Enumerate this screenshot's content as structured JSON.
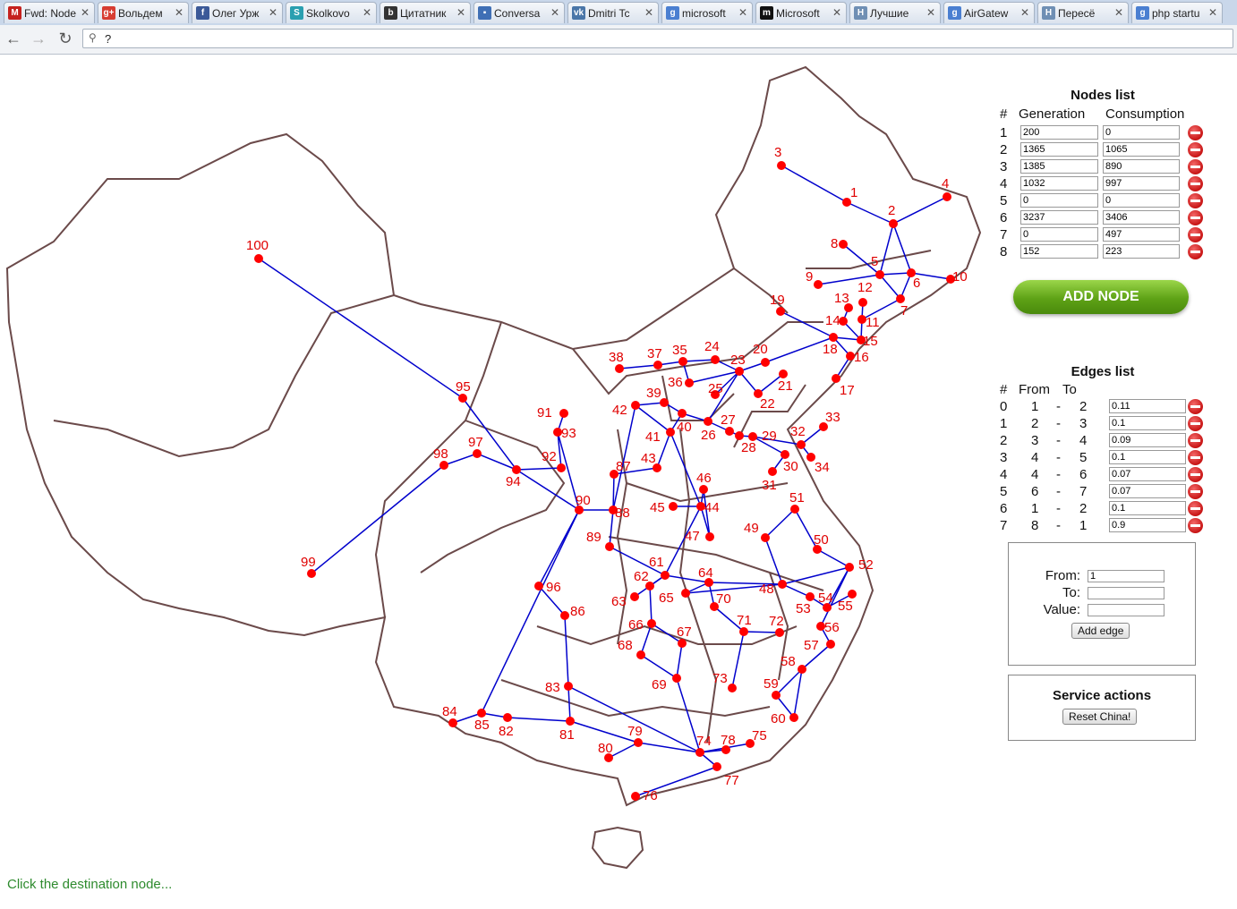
{
  "tabs": [
    {
      "title": "Fwd: Node",
      "icon": "gmail-icon",
      "color": "#c5221f",
      "glyph": "M"
    },
    {
      "title": "Вольдем",
      "icon": "gplus-icon",
      "color": "#d73d32",
      "glyph": "g+"
    },
    {
      "title": "Олег Урж",
      "icon": "facebook-icon",
      "color": "#3b5998",
      "glyph": "f"
    },
    {
      "title": "Skolkovo",
      "icon": "skolkovo-icon",
      "color": "#2a9fb0",
      "glyph": "S"
    },
    {
      "title": "Цитатник",
      "icon": "bash-icon",
      "color": "#333333",
      "glyph": "b"
    },
    {
      "title": "Conversa",
      "icon": "chat-icon",
      "color": "#3f6fb5",
      "glyph": "▪"
    },
    {
      "title": "Dmitri Tc",
      "icon": "vk-icon",
      "color": "#4a76a8",
      "glyph": "vk"
    },
    {
      "title": "microsoft",
      "icon": "google-icon",
      "color": "#4a7fd1",
      "glyph": "g"
    },
    {
      "title": "Microsoft",
      "icon": "medium-icon",
      "color": "#111111",
      "glyph": "m"
    },
    {
      "title": "Лучшие",
      "icon": "habr-icon",
      "color": "#6f8fb4",
      "glyph": "H"
    },
    {
      "title": "AirGatew",
      "icon": "google-icon",
      "color": "#4a7fd1",
      "glyph": "g"
    },
    {
      "title": "Пересё",
      "icon": "habr-icon",
      "color": "#6f8fb4",
      "glyph": "H"
    },
    {
      "title": "php startu",
      "icon": "google-icon",
      "color": "#4a7fd1",
      "glyph": "g"
    }
  ],
  "toolbar": {
    "omnibox_text": "?"
  },
  "nodes_panel": {
    "title": "Nodes list",
    "col_hash": "#",
    "col_gen": "Generation",
    "col_cons": "Consumption",
    "rows": [
      {
        "id": "1",
        "gen": "200",
        "cons": "0"
      },
      {
        "id": "2",
        "gen": "1365",
        "cons": "1065"
      },
      {
        "id": "3",
        "gen": "1385",
        "cons": "890"
      },
      {
        "id": "4",
        "gen": "1032",
        "cons": "997"
      },
      {
        "id": "5",
        "gen": "0",
        "cons": "0"
      },
      {
        "id": "6",
        "gen": "3237",
        "cons": "3406"
      },
      {
        "id": "7",
        "gen": "0",
        "cons": "497"
      },
      {
        "id": "8",
        "gen": "152",
        "cons": "223"
      }
    ],
    "add_button": "ADD NODE"
  },
  "edges_panel": {
    "title": "Edges list",
    "col_hash": "#",
    "col_from": "From",
    "col_to": "To",
    "rows": [
      {
        "id": "0",
        "from": "1",
        "to": "2",
        "val": "0.11"
      },
      {
        "id": "1",
        "from": "2",
        "to": "3",
        "val": "0.1"
      },
      {
        "id": "2",
        "from": "3",
        "to": "4",
        "val": "0.09"
      },
      {
        "id": "3",
        "from": "4",
        "to": "5",
        "val": "0.1"
      },
      {
        "id": "4",
        "from": "4",
        "to": "6",
        "val": "0.07"
      },
      {
        "id": "5",
        "from": "6",
        "to": "7",
        "val": "0.07"
      },
      {
        "id": "6",
        "from": "1",
        "to": "2",
        "val": "0.1"
      },
      {
        "id": "7",
        "from": "8",
        "to": "1",
        "val": "0.9"
      }
    ],
    "dash": "-"
  },
  "edge_form": {
    "from_label": "From:",
    "to_label": "To:",
    "value_label": "Value:",
    "from_value": "1",
    "to_value": "",
    "value_value": "",
    "button": "Add edge"
  },
  "service": {
    "title": "Service actions",
    "button": "Reset China!"
  },
  "status": "Click the destination node...",
  "map": {
    "node_color": "#ff0000",
    "label_color": "#e00000",
    "edge_color": "#0000cc",
    "nodes": [
      {
        "id": 1
      },
      {
        "id": 2
      },
      {
        "id": 3
      },
      {
        "id": 4
      },
      {
        "id": 5
      },
      {
        "id": 6
      },
      {
        "id": 7
      },
      {
        "id": 8
      },
      {
        "id": 9
      },
      {
        "id": 10
      },
      {
        "id": 11
      },
      {
        "id": 12
      },
      {
        "id": 13
      },
      {
        "id": 14
      },
      {
        "id": 15
      },
      {
        "id": 16
      },
      {
        "id": 17
      },
      {
        "id": 18
      },
      {
        "id": 19
      },
      {
        "id": 20
      },
      {
        "id": 21
      },
      {
        "id": 22
      },
      {
        "id": 23
      },
      {
        "id": 24
      },
      {
        "id": 25
      },
      {
        "id": 26
      },
      {
        "id": 27
      },
      {
        "id": 28
      },
      {
        "id": 29
      },
      {
        "id": 30
      },
      {
        "id": 31
      },
      {
        "id": 32
      },
      {
        "id": 33
      },
      {
        "id": 34
      },
      {
        "id": 35
      },
      {
        "id": 36
      },
      {
        "id": 37
      },
      {
        "id": 38
      },
      {
        "id": 39
      },
      {
        "id": 40
      },
      {
        "id": 41
      },
      {
        "id": 42
      },
      {
        "id": 43
      },
      {
        "id": 44
      },
      {
        "id": 45
      },
      {
        "id": 46
      },
      {
        "id": 47
      },
      {
        "id": 48
      },
      {
        "id": 49
      },
      {
        "id": 50
      },
      {
        "id": 51
      },
      {
        "id": 52
      },
      {
        "id": 53
      },
      {
        "id": 54
      },
      {
        "id": 55
      },
      {
        "id": 56
      },
      {
        "id": 57
      },
      {
        "id": 58
      },
      {
        "id": 59
      },
      {
        "id": 60
      },
      {
        "id": 61
      },
      {
        "id": 62
      },
      {
        "id": 63
      },
      {
        "id": 64
      },
      {
        "id": 65
      },
      {
        "id": 66
      },
      {
        "id": 67
      },
      {
        "id": 68
      },
      {
        "id": 69
      },
      {
        "id": 70
      },
      {
        "id": 71
      },
      {
        "id": 72
      },
      {
        "id": 73
      },
      {
        "id": 74
      },
      {
        "id": 75
      },
      {
        "id": 76
      },
      {
        "id": 77
      },
      {
        "id": 78
      },
      {
        "id": 79
      },
      {
        "id": 80
      },
      {
        "id": 81
      },
      {
        "id": 82
      },
      {
        "id": 83
      },
      {
        "id": 84
      },
      {
        "id": 85
      },
      {
        "id": 86
      },
      {
        "id": 87
      },
      {
        "id": 88
      },
      {
        "id": 89
      },
      {
        "id": 90
      },
      {
        "id": 91
      },
      {
        "id": 92
      },
      {
        "id": 93
      },
      {
        "id": 94
      },
      {
        "id": 95
      },
      {
        "id": 96
      },
      {
        "id": 97
      },
      {
        "id": 98
      },
      {
        "id": 99
      },
      {
        "id": 100
      }
    ],
    "edges": [
      [
        3,
        1
      ],
      [
        1,
        2
      ],
      [
        2,
        4
      ],
      [
        2,
        5
      ],
      [
        2,
        6
      ],
      [
        8,
        5
      ],
      [
        9,
        5
      ],
      [
        5,
        6
      ],
      [
        6,
        10
      ],
      [
        5,
        7
      ],
      [
        6,
        7
      ],
      [
        7,
        11
      ],
      [
        12,
        11
      ],
      [
        13,
        14
      ],
      [
        11,
        15
      ],
      [
        14,
        15
      ],
      [
        19,
        18
      ],
      [
        18,
        15
      ],
      [
        18,
        16
      ],
      [
        16,
        17
      ],
      [
        18,
        20
      ],
      [
        20,
        23
      ],
      [
        24,
        23
      ],
      [
        35,
        24
      ],
      [
        37,
        35
      ],
      [
        38,
        37
      ],
      [
        35,
        36
      ],
      [
        36,
        23
      ],
      [
        23,
        22
      ],
      [
        22,
        21
      ],
      [
        23,
        25
      ],
      [
        23,
        26
      ],
      [
        39,
        40
      ],
      [
        40,
        26
      ],
      [
        26,
        27
      ],
      [
        27,
        28
      ],
      [
        28,
        29
      ],
      [
        29,
        30
      ],
      [
        30,
        31
      ],
      [
        29,
        32
      ],
      [
        32,
        33
      ],
      [
        32,
        34
      ],
      [
        42,
        39
      ],
      [
        42,
        41
      ],
      [
        41,
        40
      ],
      [
        41,
        43
      ],
      [
        42,
        88
      ],
      [
        87,
        88
      ],
      [
        43,
        87
      ],
      [
        41,
        44
      ],
      [
        44,
        45
      ],
      [
        44,
        46
      ],
      [
        44,
        47
      ],
      [
        44,
        61
      ],
      [
        88,
        89
      ],
      [
        89,
        61
      ],
      [
        61,
        62
      ],
      [
        62,
        63
      ],
      [
        61,
        64
      ],
      [
        64,
        65
      ],
      [
        64,
        70
      ],
      [
        70,
        71
      ],
      [
        71,
        72
      ],
      [
        71,
        73
      ],
      [
        64,
        48
      ],
      [
        48,
        49
      ],
      [
        49,
        51
      ],
      [
        51,
        50
      ],
      [
        50,
        52
      ],
      [
        48,
        52
      ],
      [
        48,
        53
      ],
      [
        53,
        54
      ],
      [
        52,
        54
      ],
      [
        54,
        55
      ],
      [
        52,
        56
      ],
      [
        56,
        57
      ],
      [
        57,
        58
      ],
      [
        58,
        59
      ],
      [
        58,
        60
      ],
      [
        59,
        60
      ],
      [
        62,
        66
      ],
      [
        66,
        67
      ],
      [
        66,
        68
      ],
      [
        68,
        69
      ],
      [
        67,
        69
      ],
      [
        69,
        74
      ],
      [
        74,
        75
      ],
      [
        74,
        77
      ],
      [
        74,
        78
      ],
      [
        77,
        76
      ],
      [
        79,
        80
      ],
      [
        79,
        74
      ],
      [
        83,
        74
      ],
      [
        83,
        81
      ],
      [
        81,
        82
      ],
      [
        82,
        85
      ],
      [
        85,
        84
      ],
      [
        81,
        79
      ],
      [
        86,
        83
      ],
      [
        96,
        86
      ],
      [
        96,
        90
      ],
      [
        85,
        90
      ],
      [
        90,
        94
      ],
      [
        90,
        88
      ],
      [
        94,
        95
      ],
      [
        95,
        100
      ],
      [
        94,
        97
      ],
      [
        97,
        98
      ],
      [
        98,
        99
      ],
      [
        94,
        92
      ],
      [
        92,
        93
      ],
      [
        93,
        91
      ],
      [
        93,
        90
      ],
      [
        62,
        61
      ],
      [
        65,
        48
      ],
      [
        47,
        46
      ]
    ]
  }
}
